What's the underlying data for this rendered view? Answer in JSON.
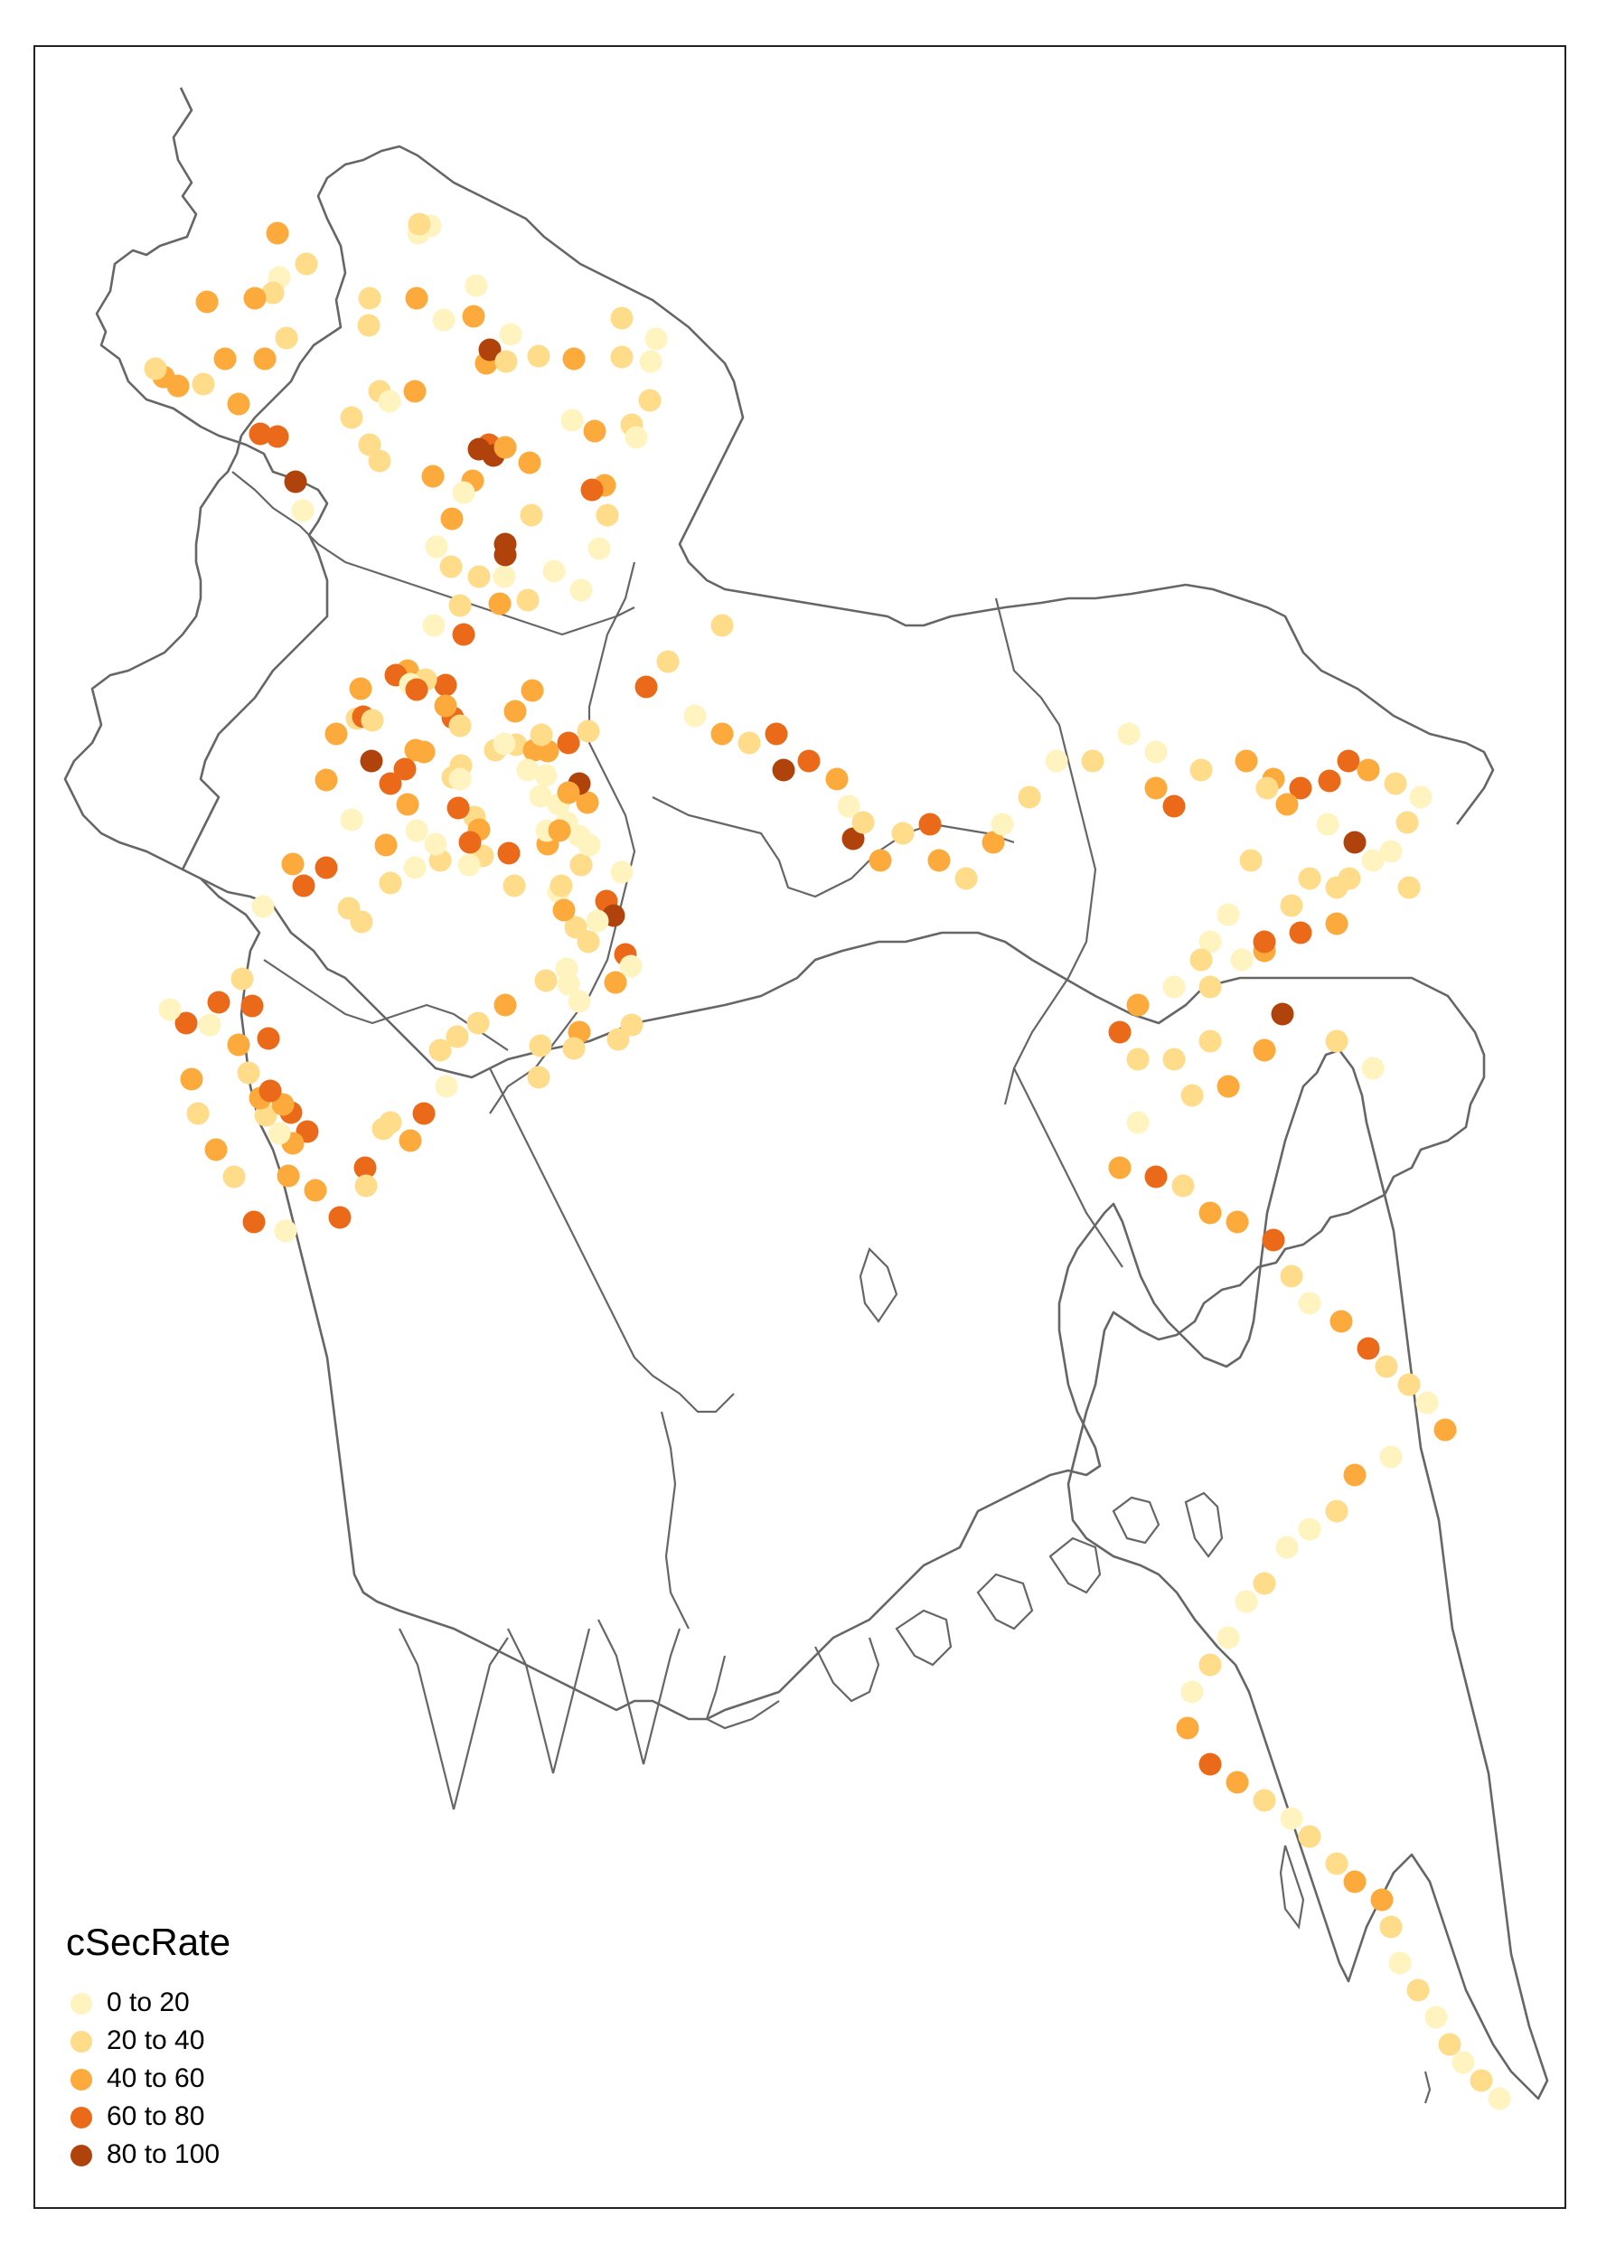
{
  "legend": {
    "title": "cSecRate",
    "classes": [
      {
        "label": "0 to 20",
        "color": "#FFF3BF"
      },
      {
        "label": "20 to 40",
        "color": "#FEDC8A"
      },
      {
        "label": "40 to 60",
        "color": "#FDAA3C"
      },
      {
        "label": "60 to 80",
        "color": "#EB6A1A"
      },
      {
        "label": "80 to 100",
        "color": "#B0420C"
      }
    ]
  },
  "map": {
    "variable": "cSecRate",
    "point_style": "filled-circle"
  }
}
